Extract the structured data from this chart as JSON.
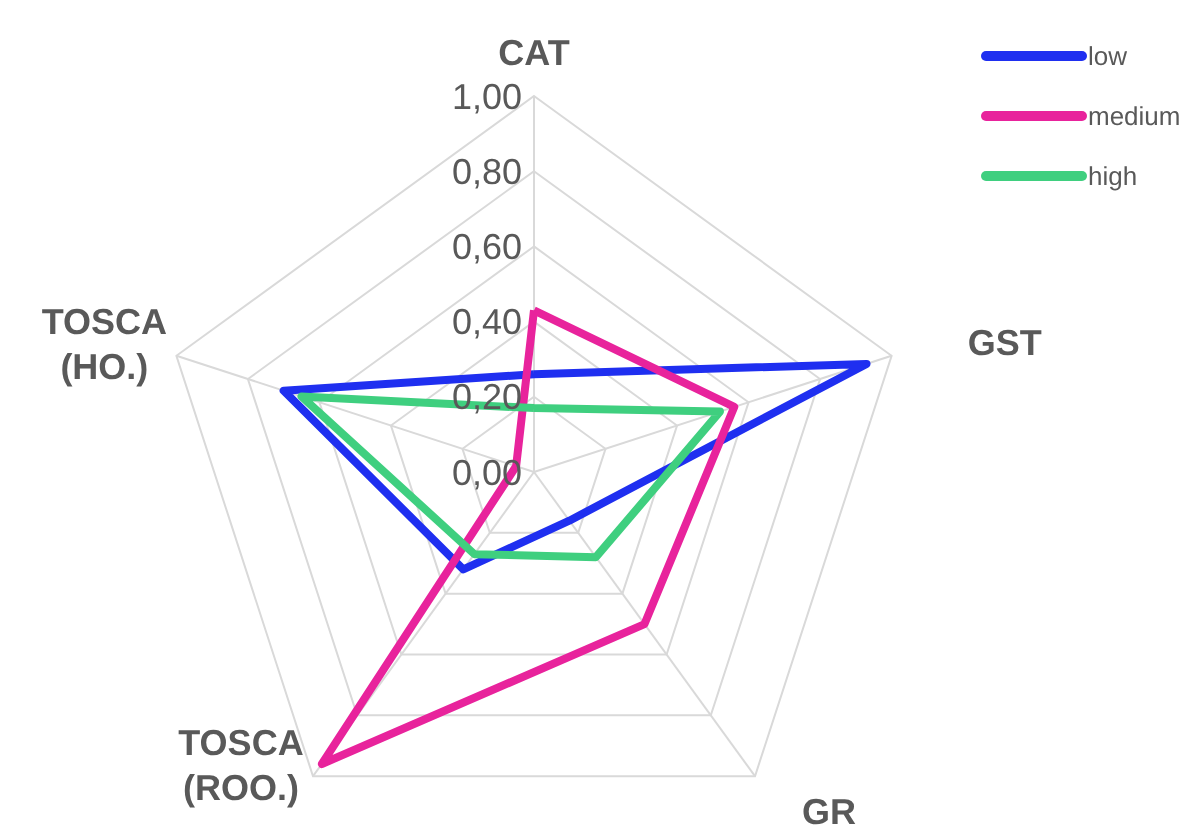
{
  "chart_data": {
    "type": "radar",
    "categories": [
      "CAT",
      "GST",
      "GR",
      "TOSCA (ROO.)",
      "TOSCA (HO.)"
    ],
    "series": [
      {
        "name": "low",
        "color": "#1f2ff0",
        "values": [
          0.26,
          0.93,
          0.16,
          0.32,
          0.7
        ]
      },
      {
        "name": "medium",
        "color": "#e8239c",
        "values": [
          0.43,
          0.56,
          0.5,
          0.96,
          0.05
        ]
      },
      {
        "name": "high",
        "color": "#3fcf7f",
        "values": [
          0.17,
          0.52,
          0.28,
          0.27,
          0.65
        ]
      }
    ],
    "ylim": [
      0,
      1
    ],
    "yticks": [
      {
        "value": 0,
        "label": "0,00"
      },
      {
        "value": 0.2,
        "label": "0,20"
      },
      {
        "value": 0.4,
        "label": "0,40"
      },
      {
        "value": 0.6,
        "label": "0,60"
      },
      {
        "value": 0.8,
        "label": "0,80"
      },
      {
        "value": 1,
        "label": "1,00"
      }
    ],
    "grid": true,
    "legend": "top right"
  }
}
